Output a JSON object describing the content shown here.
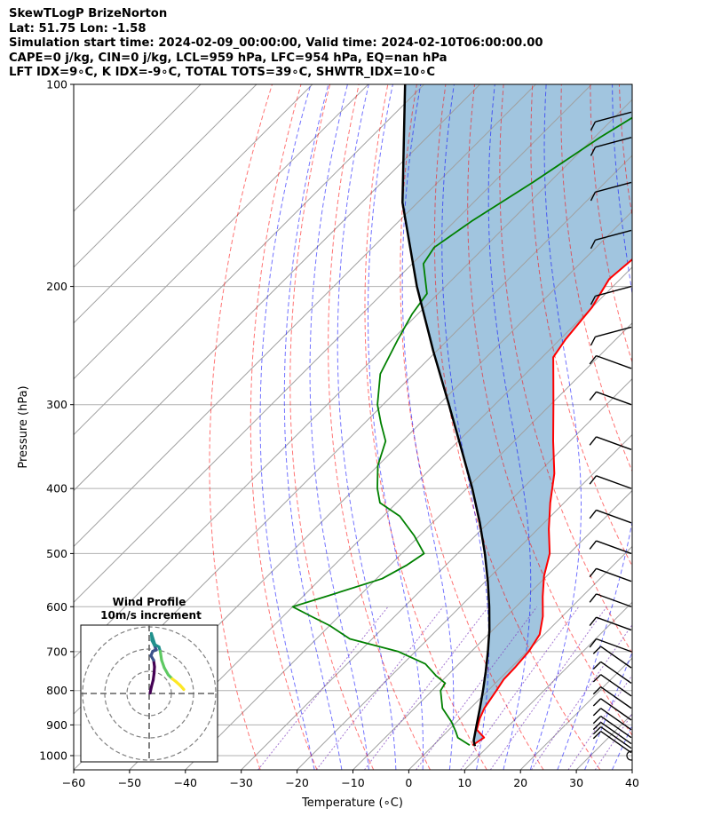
{
  "header": {
    "title": "SkewTLogP BrizeNorton",
    "location": "Lat: 51.75   Lon: -1.58",
    "times": "Simulation start time: 2024-02-09_00:00:00, Valid time: 2024-02-10T06:00:00.00",
    "indices_1": "CAPE=0 j/kg, CIN=0 j/kg, LCL=959 hPa, LFC=954 hPa, EQ=nan hPa",
    "indices_2": "LFT IDX=9∘C, K IDX=-9∘C, TOTAL TOTS=39∘C, SHWTR_IDX=10∘C"
  },
  "chart_data": {
    "type": "line",
    "xlabel": "Temperature (∘C)",
    "ylabel": "Pressure (hPa)",
    "xlim": [
      -60,
      40
    ],
    "ylim": [
      1050,
      100
    ],
    "yscale": "log",
    "skew_deg": 45,
    "grid": true,
    "x_ticks": [
      -60,
      -50,
      -40,
      -30,
      -20,
      -10,
      0,
      10,
      20,
      30,
      40
    ],
    "x_tick_labels": [
      "−60",
      "−50",
      "−40",
      "−30",
      "−20",
      "−10",
      "0",
      "10",
      "20",
      "30",
      "40"
    ],
    "y_ticks": [
      1000,
      900,
      800,
      700,
      600,
      500,
      400,
      300,
      200,
      100
    ],
    "y_tick_labels": [
      "1000",
      "900",
      "800",
      "700",
      "600",
      "500",
      "400",
      "300",
      "200",
      "100"
    ],
    "colors": {
      "temperature": "#ff0000",
      "dewpoint": "#008000",
      "parcel": "#000000",
      "cape_fill": "#a1c5df",
      "dry_adiabat": "#ff0000",
      "moist_adiabat": "#0000ff",
      "mixing_ratio": "#7f3fbf"
    },
    "series": [
      {
        "key": "temperature",
        "p": [
          965,
          940,
          915,
          880,
          850,
          800,
          770,
          740,
          700,
          660,
          620,
          580,
          540,
          500,
          460,
          420,
          380,
          340,
          300,
          270,
          255,
          240,
          215,
          195,
          175,
          160,
          140,
          120,
          110,
          100
        ],
        "t": [
          7,
          7.7,
          5,
          3.5,
          2.5,
          1.5,
          0.8,
          0.7,
          0.3,
          -0.8,
          -3.5,
          -7,
          -10.5,
          -13.5,
          -18,
          -22.5,
          -27,
          -33,
          -39.5,
          -45,
          -48,
          -49,
          -50,
          -52,
          -51,
          -53.5,
          -56,
          -59.5,
          -60.5,
          -62
        ]
      },
      {
        "key": "dewpoint",
        "p": [
          965,
          940,
          920,
          890,
          850,
          800,
          780,
          760,
          730,
          700,
          670,
          640,
          620,
          600,
          580,
          545,
          520,
          500,
          470,
          440,
          420,
          400,
          370,
          340,
          320,
          300,
          270,
          240,
          220,
          205,
          185,
          175,
          160,
          140,
          120,
          100
        ],
        "t": [
          6.5,
          3,
          1.5,
          -1,
          -5,
          -8.5,
          -9,
          -12,
          -16,
          -23,
          -34,
          -40,
          -45,
          -50,
          -46,
          -39,
          -37,
          -36,
          -41,
          -47,
          -53,
          -56,
          -60,
          -63,
          -67,
          -71,
          -76,
          -79,
          -81,
          -82,
          -88,
          -89,
          -87,
          -83,
          -79,
          -73
        ]
      },
      {
        "key": "parcel",
        "p": [
          968,
          950,
          900,
          850,
          800,
          750,
          700,
          650,
          600,
          550,
          500,
          450,
          400,
          350,
          300,
          250,
          200,
          150,
          100
        ],
        "t": [
          7.6,
          6.4,
          4.1,
          1.7,
          -0.9,
          -3.8,
          -7.0,
          -10.6,
          -14.8,
          -19.6,
          -25.1,
          -31.5,
          -39.0,
          -47.9,
          -58.2,
          -70.5,
          -85.1,
          -102.7,
          -123.4
        ]
      }
    ],
    "wind_barbs": [
      {
        "p": 1000,
        "label": "calm"
      },
      {
        "p": 990
      },
      {
        "p": 975
      },
      {
        "p": 960
      },
      {
        "p": 940
      },
      {
        "p": 915
      },
      {
        "p": 885
      },
      {
        "p": 850
      },
      {
        "p": 815
      },
      {
        "p": 780
      },
      {
        "p": 740
      },
      {
        "p": 700
      },
      {
        "p": 650
      },
      {
        "p": 600
      },
      {
        "p": 550
      },
      {
        "p": 500
      },
      {
        "p": 450
      },
      {
        "p": 400
      },
      {
        "p": 350
      },
      {
        "p": 300
      },
      {
        "p": 265
      },
      {
        "p": 230
      },
      {
        "p": 200
      },
      {
        "p": 165
      },
      {
        "p": 140
      },
      {
        "p": 120
      },
      {
        "p": 110
      }
    ],
    "hodograph": {
      "title": "Wind Profile",
      "subtitle": "10m/s increment",
      "rings": 3,
      "palette": [
        "#440154",
        "#3b528b",
        "#21918c",
        "#5ec962",
        "#fde725"
      ]
    }
  }
}
